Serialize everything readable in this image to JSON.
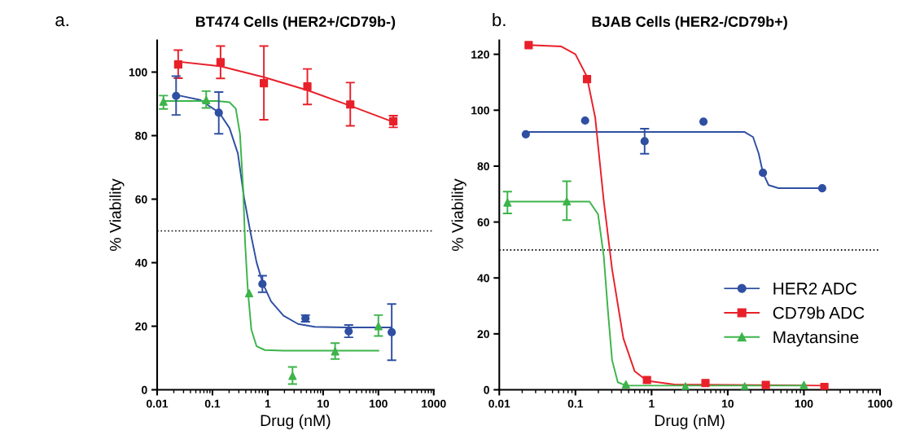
{
  "chart_data": [
    {
      "type": "scatter",
      "title": "BT474 Cells (HER2+/CD79b-)",
      "xlabel": "Drug (nM)",
      "ylabel": "% Viability",
      "annotations": [
        "a."
      ],
      "log": "x",
      "xlim": [
        0.01,
        1000
      ],
      "xticks": [
        0.01,
        0.1,
        1,
        10,
        100,
        1000
      ],
      "ylim": [
        0,
        110
      ],
      "yticks": [
        0,
        20,
        40,
        60,
        80,
        100
      ],
      "grid": false,
      "legend": false,
      "ref_lines": [
        {
          "axis": "y",
          "value": 50,
          "line_style": "dotted",
          "color": "#000000"
        }
      ],
      "series": [
        {
          "type": "line",
          "color": "#e8202a",
          "marker": "none",
          "line_style": "solid",
          "x": [
            0.024,
            0.143,
            0.85,
            5.2,
            31,
            186
          ],
          "values": [
            103.3,
            101.8,
            98.4,
            94.3,
            89.4,
            84.3
          ]
        },
        {
          "type": "line",
          "color": "#2f4fa2",
          "marker": "none",
          "line_style": "solid",
          "x": [
            0.0224,
            0.0605,
            0.133,
            0.203,
            0.288,
            0.373,
            0.483,
            0.627,
            0.813,
            1.15,
            1.93,
            3.54,
            7.08,
            25.9,
            174
          ],
          "values": [
            92.8,
            91.2,
            87.2,
            82.4,
            74.4,
            60.4,
            49.8,
            40.1,
            33.5,
            27.8,
            23.3,
            20.7,
            19.8,
            19.6,
            19.6
          ]
        },
        {
          "type": "line",
          "color": "#3cb44a",
          "marker": "none",
          "line_style": "solid",
          "x": [
            0.013,
            0.121,
            0.203,
            0.264,
            0.314,
            0.357,
            0.389,
            0.436,
            0.505,
            0.627,
            0.886,
            1.93,
            100
          ],
          "values": [
            90.9,
            90.9,
            90.5,
            88.5,
            80.6,
            63.9,
            46.3,
            31.3,
            18.9,
            13.7,
            12.5,
            12.3,
            12.3
          ]
        },
        {
          "color": "#e8202a",
          "marker": "square",
          "x": [
            0.024,
            0.14,
            0.85,
            5.2,
            31,
            186
          ],
          "values": [
            102.4,
            103.1,
            96.5,
            95.5,
            89.8,
            84.5
          ],
          "errors": [
            [
              98.1,
              106.9
            ],
            [
              98,
              108.2
            ],
            [
              85,
              108.2
            ],
            [
              89.8,
              101
            ],
            [
              83.1,
              96.7
            ],
            [
              82.6,
              86.3
            ]
          ]
        },
        {
          "color": "#2f4fa2",
          "marker": "circle",
          "x": [
            0.022,
            0.13,
            0.8,
            4.8,
            29,
            174
          ],
          "values": [
            92.5,
            87.2,
            33.3,
            22.5,
            18.4,
            18.1
          ],
          "errors": [
            [
              86.5,
              98.7
            ],
            [
              80.6,
              93.7
            ],
            [
              30.7,
              35.9
            ],
            [
              21.4,
              23.5
            ],
            [
              16.5,
              20.4
            ],
            [
              9.3,
              27
            ]
          ]
        },
        {
          "color": "#3cb44a",
          "marker": "triangle",
          "x": [
            0.013,
            0.077,
            0.46,
            2.8,
            16.5,
            100
          ],
          "values": [
            90.7,
            91.2,
            30.4,
            4.4,
            12.1,
            20
          ],
          "errors": [
            [
              88.4,
              92.6
            ],
            [
              88.7,
              94
            ],
            null,
            [
              1.8,
              7.2
            ],
            [
              9.7,
              14.7
            ],
            [
              16.9,
              23.5
            ]
          ]
        }
      ]
    },
    {
      "type": "scatter",
      "title": "BJAB Cells (HER2-/CD79b+)",
      "xlabel": "Drug (nM)",
      "ylabel": "% Viability",
      "annotations": [
        "b."
      ],
      "log": "x",
      "xlim": [
        0.01,
        1000
      ],
      "xticks": [
        0.01,
        0.1,
        1,
        10,
        100,
        1000
      ],
      "ylim": [
        0,
        125
      ],
      "yticks": [
        0,
        20,
        40,
        60,
        80,
        100,
        120
      ],
      "grid": false,
      "legend": "bottom right",
      "ref_lines": [
        {
          "axis": "y",
          "value": 50,
          "line_style": "dotted",
          "color": "#000000"
        }
      ],
      "series": [
        {
          "type": "line",
          "color": "#2f4fa2",
          "marker": "none",
          "line_style": "solid",
          "x": [
            0.0223,
            16.7,
            21.5,
            25.5,
            29,
            34.4,
            46.4,
            174
          ],
          "values": [
            92.2,
            92.2,
            90.4,
            84.5,
            77.6,
            73.2,
            72.1,
            72.1
          ]
        },
        {
          "type": "line",
          "color": "#e8202a",
          "marker": "none",
          "line_style": "solid",
          "x": [
            0.0243,
            0.0653,
            0.1,
            0.141,
            0.182,
            0.235,
            0.303,
            0.426,
            0.6,
            0.87,
            1.98,
            186
          ],
          "values": [
            123.3,
            122.8,
            120,
            112.1,
            97.3,
            67.8,
            43.1,
            18.4,
            6.6,
            3.2,
            1.9,
            1.5
          ]
        },
        {
          "type": "line",
          "color": "#3cb44a",
          "marker": "none",
          "line_style": "solid",
          "x": [
            0.0128,
            0.153,
            0.198,
            0.235,
            0.267,
            0.303,
            0.36,
            0.46,
            100
          ],
          "values": [
            67.3,
            67.3,
            62.8,
            48,
            28.3,
            10.6,
            2.7,
            1.5,
            1.5
          ]
        },
        {
          "name": "HER2 ADC",
          "color": "#2f4fa2",
          "marker": "circle",
          "x": [
            0.0223,
            0.134,
            0.81,
            4.8,
            29,
            174
          ],
          "values": [
            91.4,
            96.3,
            88.9,
            95.9,
            77.6,
            72.1
          ],
          "errors": [
            null,
            null,
            [
              84.4,
              93.4
            ],
            null,
            null,
            null
          ]
        },
        {
          "name": "CD79b ADC",
          "color": "#e8202a",
          "marker": "square",
          "x": [
            0.0243,
            0.142,
            0.87,
            5.1,
            31.6,
            186
          ],
          "values": [
            123.3,
            111.1,
            3.5,
            2.4,
            1.7,
            1.0
          ]
        },
        {
          "name": "Maytansine",
          "color": "#3cb44a",
          "marker": "triangle",
          "x": [
            0.0128,
            0.077,
            0.46,
            2.78,
            16.7,
            100
          ],
          "values": [
            67,
            67.4,
            1.9,
            1.2,
            1.2,
            1.7
          ],
          "errors": [
            [
              63.1,
              70.9
            ],
            [
              60.7,
              74.6
            ],
            null,
            null,
            null,
            null
          ]
        }
      ]
    }
  ]
}
